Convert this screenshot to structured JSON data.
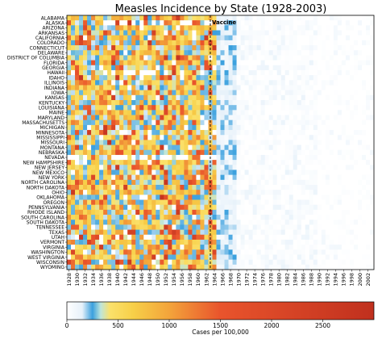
{
  "chart_data": {
    "type": "heatmap",
    "title": "Measles Incidence by State (1928-2003)",
    "xlabel": "",
    "ylabel": "",
    "x_start": 1928,
    "x_end": 2003,
    "x_tick_labels": [
      "1928",
      "1930",
      "1932",
      "1934",
      "1936",
      "1938",
      "1940",
      "1942",
      "1944",
      "1946",
      "1948",
      "1950",
      "1952",
      "1954",
      "1956",
      "1958",
      "1960",
      "1962",
      "1964",
      "1966",
      "1968",
      "1970",
      "1972",
      "1974",
      "1976",
      "1978",
      "1980",
      "1982",
      "1984",
      "1986",
      "1988",
      "1990",
      "1992",
      "1994",
      "1996",
      "1998",
      "2000",
      "2002"
    ],
    "states": [
      "ALABAMA",
      "ALASKA",
      "ARIZONA",
      "ARKANSAS",
      "CALIFORNIA",
      "COLORADO",
      "CONNECTICUT",
      "DELAWARE",
      "DISTRICT OF COLUMBIA",
      "FLORIDA",
      "GEORGIA",
      "HAWAII",
      "IDAHO",
      "ILLINOIS",
      "INDIANA",
      "IOWA",
      "KANSAS",
      "KENTUCKY",
      "LOUISIANA",
      "MAINE",
      "MARYLAND",
      "MASSACHUSETTS",
      "MICHIGAN",
      "MINNESOTA",
      "MISSISSIPPI",
      "MISSOURI",
      "MONTANA",
      "NEBRASKA",
      "NEVADA",
      "NEW HAMPSHIRE",
      "NEW JERSEY",
      "NEW MEXICO",
      "NEW YORK",
      "NORTH CAROLINA",
      "NORTH DAKOTA",
      "OHIO",
      "OKLAHOMA",
      "OREGON",
      "PENNSYLVANIA",
      "RHODE ISLAND",
      "SOUTH CAROLINA",
      "SOUTH DAKOTA",
      "TENNESSEE",
      "TEXAS",
      "UTAH",
      "VERMONT",
      "VIRGINIA",
      "WASHINGTON",
      "WEST VIRGINIA",
      "WISCONSIN",
      "WYOMING"
    ],
    "annotation": {
      "text": "Vaccine",
      "x": 1963
    },
    "colorbar": {
      "label": "Cases per 100,000",
      "range": [
        0,
        3000
      ],
      "tick_values": [
        0,
        500,
        1000,
        1500,
        2000,
        2500
      ],
      "tick_labels": [
        "0",
        "500",
        "1000",
        "1500",
        "2000",
        "2500"
      ],
      "stops": [
        {
          "v": 0,
          "color": "#ffffff"
        },
        {
          "v": 150,
          "color": "#e6f1fa"
        },
        {
          "v": 250,
          "color": "#3aa0de"
        },
        {
          "v": 330,
          "color": "#bde5dc"
        },
        {
          "v": 420,
          "color": "#fbe16b"
        },
        {
          "v": 650,
          "color": "#f7cf48"
        },
        {
          "v": 1000,
          "color": "#f3a43b"
        },
        {
          "v": 1500,
          "color": "#e9542c"
        },
        {
          "v": 3000,
          "color": "#c0301e"
        }
      ]
    },
    "grid": false
  }
}
